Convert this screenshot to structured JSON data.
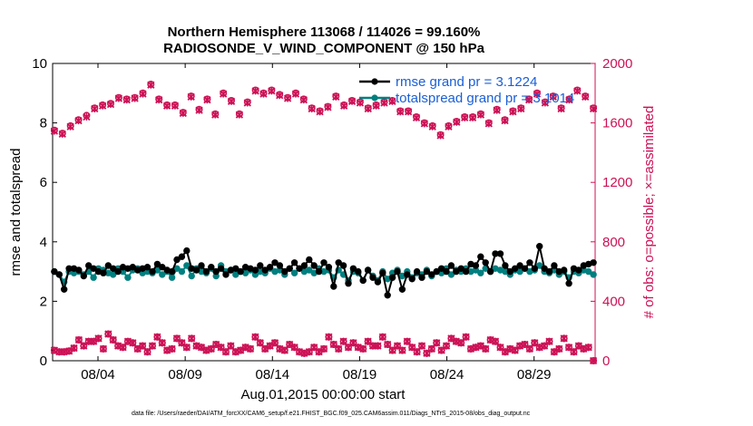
{
  "chart_data": {
    "type": "line",
    "title": [
      "Northern Hemisphere 113068 / 114026 = 99.160%",
      "RADIOSONDE_V_WIND_COMPONENT @ 150 hPa"
    ],
    "xlabel": "Aug.01,2015 00:00:00 start",
    "ylabel": "rmse and totalspread",
    "ylabel_right": "# of obs: o=possible; ×=assimilated",
    "footnote": "data file: /Users/raeder/DAI/ATM_forcXX/CAM6_setup/f.e21.FHIST_BGC.f09_025.CAM6assim.011/Diags_NTrS_2015-08/obs_diag_output.nc",
    "xlim": [
      0.9,
      32.0
    ],
    "ylim": [
      0,
      10
    ],
    "ylim_right": [
      0,
      2000
    ],
    "x_ticks": [
      3.5,
      8.5,
      13.5,
      18.5,
      23.5,
      28.5
    ],
    "x_tick_labels": [
      "08/04",
      "08/09",
      "08/14",
      "08/19",
      "08/24",
      "08/29"
    ],
    "y_ticks": [
      0,
      2,
      4,
      6,
      8,
      10
    ],
    "y_ticks_right": [
      0,
      400,
      800,
      1200,
      1600,
      2000
    ],
    "legend": [
      "rmse grand pr = 3.1224",
      "totalspread grand pr = 3.1014"
    ],
    "legend_position": "top-right",
    "grid": false,
    "colors": {
      "rmse": "#000000",
      "spread": "#007f7f",
      "obs": "#cc1155"
    },
    "series": [
      {
        "name": "rmse grand pr = 3.1224",
        "axis": "left",
        "values": [
          3.0,
          2.9,
          2.4,
          3.1,
          3.1,
          3.05,
          2.85,
          3.2,
          3.1,
          3.0,
          2.95,
          3.2,
          3.1,
          3.0,
          3.15,
          3.1,
          3.15,
          3.05,
          3.1,
          3.15,
          3.0,
          3.25,
          3.15,
          3.05,
          3.0,
          3.4,
          3.5,
          3.7,
          3.1,
          3.05,
          3.2,
          3.0,
          3.15,
          3.0,
          3.1,
          2.9,
          3.05,
          3.1,
          3.0,
          3.15,
          3.1,
          3.05,
          3.2,
          3.05,
          3.15,
          3.3,
          3.2,
          3.0,
          3.1,
          3.3,
          3.1,
          3.2,
          3.4,
          3.2,
          3.0,
          3.3,
          3.15,
          2.5,
          3.3,
          3.2,
          2.6,
          3.1,
          3.0,
          2.7,
          3.05,
          2.8,
          2.65,
          2.95,
          2.2,
          2.8,
          3.0,
          2.4,
          2.9,
          2.75,
          3.0,
          2.8,
          3.0,
          2.9,
          3.0,
          3.1,
          3.0,
          3.2,
          3.0,
          3.1,
          3.0,
          3.25,
          3.2,
          3.5,
          3.3,
          3.0,
          3.6,
          3.6,
          3.2,
          3.0,
          3.1,
          3.2,
          3.1,
          3.3,
          3.1,
          3.85,
          3.1,
          3.0,
          3.2,
          3.0,
          3.05,
          2.6,
          3.1,
          3.05,
          3.2,
          3.25,
          3.3
        ]
      },
      {
        "name": "totalspread grand pr = 3.1014",
        "axis": "left",
        "values": [
          3.0,
          2.9,
          2.65,
          3.0,
          2.95,
          3.0,
          2.9,
          3.0,
          2.8,
          3.1,
          3.05,
          2.95,
          2.9,
          3.1,
          3.0,
          2.8,
          3.05,
          3.1,
          2.95,
          3.0,
          2.95,
          3.05,
          2.9,
          3.0,
          2.8,
          3.1,
          3.0,
          3.2,
          2.85,
          3.1,
          3.0,
          2.95,
          3.1,
          2.85,
          3.2,
          3.0,
          3.05,
          2.9,
          3.0,
          2.95,
          3.05,
          2.9,
          3.0,
          2.95,
          3.1,
          3.0,
          3.05,
          2.9,
          3.1,
          2.95,
          3.1,
          3.0,
          3.05,
          2.95,
          3.1,
          3.0,
          3.05,
          2.8,
          3.05,
          2.9,
          2.7,
          3.0,
          2.95,
          2.7,
          3.05,
          2.85,
          2.7,
          3.0,
          2.75,
          2.95,
          3.05,
          2.85,
          3.0,
          2.8,
          2.95,
          2.9,
          3.05,
          2.85,
          3.0,
          2.95,
          3.1,
          2.9,
          3.05,
          3.0,
          3.1,
          3.0,
          3.05,
          2.95,
          3.1,
          3.0,
          3.1,
          3.05,
          3.0,
          2.9,
          3.05,
          3.0,
          3.1,
          3.0,
          3.05,
          3.2,
          3.0,
          2.95,
          3.05,
          2.9,
          3.0,
          2.8,
          3.0,
          2.95,
          3.05,
          3.0,
          2.9
        ]
      },
      {
        "name": "obs possible (top)",
        "axis": "right",
        "marker": "o",
        "values": [
          1550,
          1530,
          1580,
          1620,
          1650,
          1700,
          1720,
          1730,
          1770,
          1760,
          1770,
          1800,
          1860,
          1760,
          1720,
          1720,
          1670,
          1780,
          1690,
          1760,
          1660,
          1800,
          1750,
          1660,
          1740,
          1820,
          1800,
          1820,
          1790,
          1770,
          1800,
          1760,
          1700,
          1680,
          1710,
          1780,
          1720,
          1750,
          1740,
          1700,
          1720,
          1740,
          1750,
          1680,
          1680,
          1640,
          1600,
          1580,
          1520,
          1580,
          1610,
          1640,
          1640,
          1660,
          1600,
          1690,
          1620,
          1680,
          1700,
          1760,
          1800,
          1740,
          1780,
          1700,
          1760,
          1820,
          1780,
          1700
        ]
      },
      {
        "name": "obs assimilated (top)",
        "axis": "right",
        "marker": "x",
        "values": [
          1545,
          1525,
          1575,
          1615,
          1640,
          1695,
          1715,
          1725,
          1765,
          1755,
          1765,
          1795,
          1855,
          1755,
          1715,
          1715,
          1665,
          1775,
          1685,
          1755,
          1655,
          1795,
          1745,
          1655,
          1735,
          1815,
          1795,
          1815,
          1785,
          1765,
          1795,
          1755,
          1695,
          1675,
          1705,
          1775,
          1715,
          1745,
          1735,
          1695,
          1715,
          1735,
          1745,
          1675,
          1675,
          1635,
          1595,
          1575,
          1515,
          1575,
          1605,
          1635,
          1635,
          1655,
          1595,
          1685,
          1615,
          1675,
          1695,
          1755,
          1795,
          1735,
          1775,
          1695,
          1755,
          1815,
          1775,
          1695
        ]
      },
      {
        "name": "obs bottom",
        "axis": "right",
        "marker": "o",
        "values": [
          70,
          60,
          60,
          65,
          85,
          140,
          100,
          130,
          130,
          150,
          80,
          180,
          140,
          100,
          90,
          130,
          120,
          80,
          100,
          60,
          100,
          160,
          120,
          70,
          80,
          150,
          120,
          90,
          150,
          100,
          90,
          70,
          80,
          110,
          90,
          60,
          100,
          60,
          70,
          90,
          80,
          160,
          120,
          80,
          100,
          120,
          80,
          70,
          110,
          90,
          60,
          50,
          60,
          90,
          60,
          80,
          160,
          110,
          80,
          130,
          90,
          120,
          90,
          80,
          130,
          100,
          100,
          160,
          110,
          70,
          100,
          70,
          130,
          90,
          60,
          100,
          50,
          80,
          120,
          70,
          100,
          150,
          130,
          120,
          160,
          80,
          90,
          100,
          80,
          140,
          130,
          90,
          60,
          80,
          70,
          100,
          110,
          80,
          120,
          90,
          100,
          130,
          60,
          80,
          150,
          90,
          60,
          100,
          80,
          90,
          0
        ]
      }
    ]
  }
}
